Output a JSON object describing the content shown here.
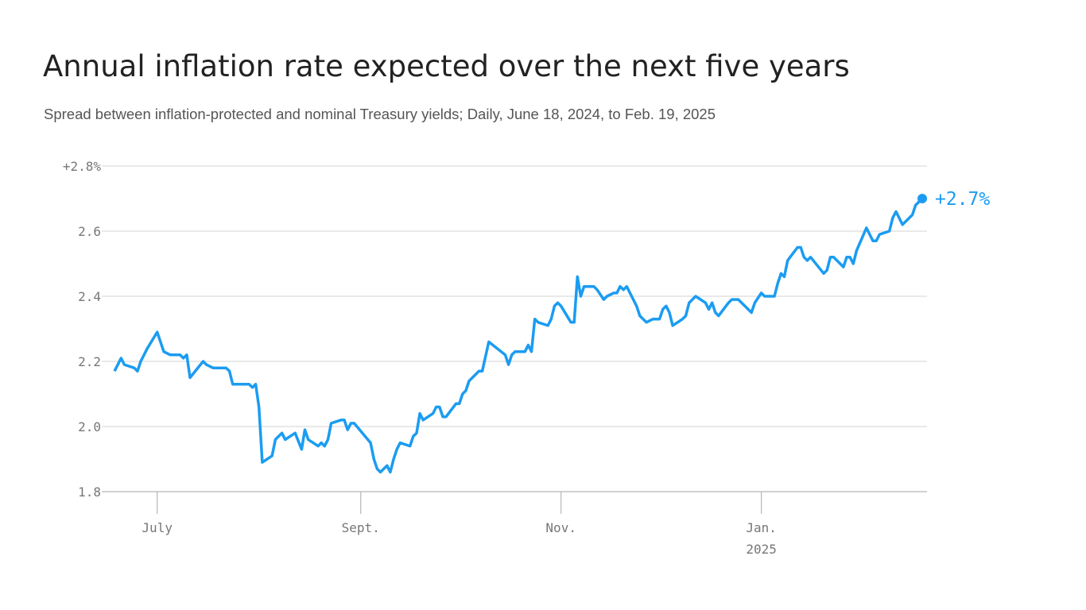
{
  "chart_data": {
    "type": "line",
    "title": "Annual inflation rate expected over the next five years",
    "subtitle": "Spread between inflation-protected and nominal Treasury yields; Daily, June 18, 2024, to Feb. 19, 2025",
    "x": [
      "2024-06-18",
      "2024-06-20",
      "2024-06-21",
      "2024-06-24",
      "2024-06-25",
      "2024-06-26",
      "2024-06-28",
      "2024-07-01",
      "2024-07-03",
      "2024-07-05",
      "2024-07-08",
      "2024-07-09",
      "2024-07-10",
      "2024-07-11",
      "2024-07-15",
      "2024-07-16",
      "2024-07-18",
      "2024-07-22",
      "2024-07-23",
      "2024-07-24",
      "2024-07-29",
      "2024-07-30",
      "2024-07-31",
      "2024-08-01",
      "2024-08-02",
      "2024-08-05",
      "2024-08-06",
      "2024-08-08",
      "2024-08-09",
      "2024-08-12",
      "2024-08-14",
      "2024-08-15",
      "2024-08-16",
      "2024-08-19",
      "2024-08-20",
      "2024-08-21",
      "2024-08-22",
      "2024-08-23",
      "2024-08-26",
      "2024-08-27",
      "2024-08-28",
      "2024-08-29",
      "2024-08-30",
      "2024-09-04",
      "2024-09-05",
      "2024-09-06",
      "2024-09-07",
      "2024-09-09",
      "2024-09-10",
      "2024-09-11",
      "2024-09-12",
      "2024-09-13",
      "2024-09-16",
      "2024-09-17",
      "2024-09-18",
      "2024-09-19",
      "2024-09-20",
      "2024-09-23",
      "2024-09-24",
      "2024-09-25",
      "2024-09-26",
      "2024-09-27",
      "2024-09-30",
      "2024-10-01",
      "2024-10-02",
      "2024-10-03",
      "2024-10-04",
      "2024-10-07",
      "2024-10-08",
      "2024-10-10",
      "2024-10-15",
      "2024-10-16",
      "2024-10-17",
      "2024-10-18",
      "2024-10-21",
      "2024-10-22",
      "2024-10-23",
      "2024-10-24",
      "2024-10-25",
      "2024-10-28",
      "2024-10-29",
      "2024-10-30",
      "2024-10-31",
      "2024-11-01",
      "2024-11-04",
      "2024-11-05",
      "2024-11-06",
      "2024-11-07",
      "2024-11-08",
      "2024-11-11",
      "2024-11-12",
      "2024-11-14",
      "2024-11-15",
      "2024-11-17",
      "2024-11-18",
      "2024-11-19",
      "2024-11-20",
      "2024-11-21",
      "2024-11-24",
      "2024-11-25",
      "2024-11-26",
      "2024-11-27",
      "2024-11-29",
      "2024-12-01",
      "2024-12-02",
      "2024-12-03",
      "2024-12-04",
      "2024-12-05",
      "2024-12-08",
      "2024-12-09",
      "2024-12-10",
      "2024-12-12",
      "2024-12-15",
      "2024-12-16",
      "2024-12-17",
      "2024-12-18",
      "2024-12-19",
      "2024-12-22",
      "2024-12-23",
      "2024-12-25",
      "2024-12-29",
      "2024-12-30",
      "2025-01-01",
      "2025-01-02",
      "2025-01-05",
      "2025-01-06",
      "2025-01-07",
      "2025-01-08",
      "2025-01-09",
      "2025-01-12",
      "2025-01-13",
      "2025-01-14",
      "2025-01-15",
      "2025-01-16",
      "2025-01-20",
      "2025-01-21",
      "2025-01-22",
      "2025-01-23",
      "2025-01-26",
      "2025-01-27",
      "2025-01-28",
      "2025-01-29",
      "2025-01-30",
      "2025-02-02",
      "2025-02-03",
      "2025-02-04",
      "2025-02-05",
      "2025-02-06",
      "2025-02-09",
      "2025-02-10",
      "2025-02-11",
      "2025-02-12",
      "2025-02-13",
      "2025-02-16",
      "2025-02-17",
      "2025-02-19"
    ],
    "series": [
      {
        "color": "#1b9cf1",
        "values": [
          2.17,
          2.21,
          2.19,
          2.18,
          2.17,
          2.2,
          2.24,
          2.29,
          2.23,
          2.22,
          2.22,
          2.21,
          2.22,
          2.15,
          2.2,
          2.19,
          2.18,
          2.18,
          2.17,
          2.13,
          2.13,
          2.12,
          2.13,
          2.06,
          1.89,
          1.91,
          1.96,
          1.98,
          1.96,
          1.98,
          1.93,
          1.99,
          1.96,
          1.94,
          1.95,
          1.94,
          1.96,
          2.01,
          2.02,
          2.02,
          1.99,
          2.01,
          2.01,
          1.95,
          1.9,
          1.87,
          1.86,
          1.88,
          1.86,
          1.9,
          1.93,
          1.95,
          1.94,
          1.97,
          1.98,
          2.04,
          2.02,
          2.04,
          2.06,
          2.06,
          2.03,
          2.03,
          2.07,
          2.07,
          2.1,
          2.11,
          2.14,
          2.17,
          2.17,
          2.26,
          2.22,
          2.19,
          2.22,
          2.23,
          2.23,
          2.25,
          2.23,
          2.33,
          2.32,
          2.31,
          2.33,
          2.37,
          2.38,
          2.37,
          2.32,
          2.32,
          2.46,
          2.4,
          2.43,
          2.43,
          2.42,
          2.39,
          2.4,
          2.41,
          2.41,
          2.43,
          2.42,
          2.43,
          2.37,
          2.34,
          2.33,
          2.32,
          2.33,
          2.33,
          2.36,
          2.37,
          2.35,
          2.31,
          2.33,
          2.34,
          2.38,
          2.4,
          2.38,
          2.36,
          2.38,
          2.35,
          2.34,
          2.38,
          2.39,
          2.39,
          2.35,
          2.38,
          2.41,
          2.4,
          2.4,
          2.44,
          2.47,
          2.46,
          2.51,
          2.55,
          2.55,
          2.52,
          2.51,
          2.52,
          2.47,
          2.48,
          2.52,
          2.52,
          2.49,
          2.52,
          2.52,
          2.5,
          2.54,
          2.61,
          2.59,
          2.57,
          2.57,
          2.59,
          2.6,
          2.64,
          2.66,
          2.64,
          2.62,
          2.65,
          2.68,
          2.7
        ]
      }
    ],
    "last_value_label": "+2.7%",
    "xlim": [
      "2024-06-18",
      "2025-02-19"
    ],
    "xticks": [
      {
        "value": "2024-07-01",
        "label": "July"
      },
      {
        "value": "2024-09-01",
        "label": "Sept."
      },
      {
        "value": "2024-11-01",
        "label": "Nov."
      },
      {
        "value": "2025-01-01",
        "label": "Jan."
      }
    ],
    "xtick_year": "2025",
    "ylim": [
      1.8,
      2.8
    ],
    "yticks": [
      1.8,
      {
        "value": 2,
        "label": "2.0"
      },
      2.2,
      2.4,
      2.6,
      {
        "value": 2.8,
        "label": "+2.8%"
      }
    ],
    "grid": true
  }
}
